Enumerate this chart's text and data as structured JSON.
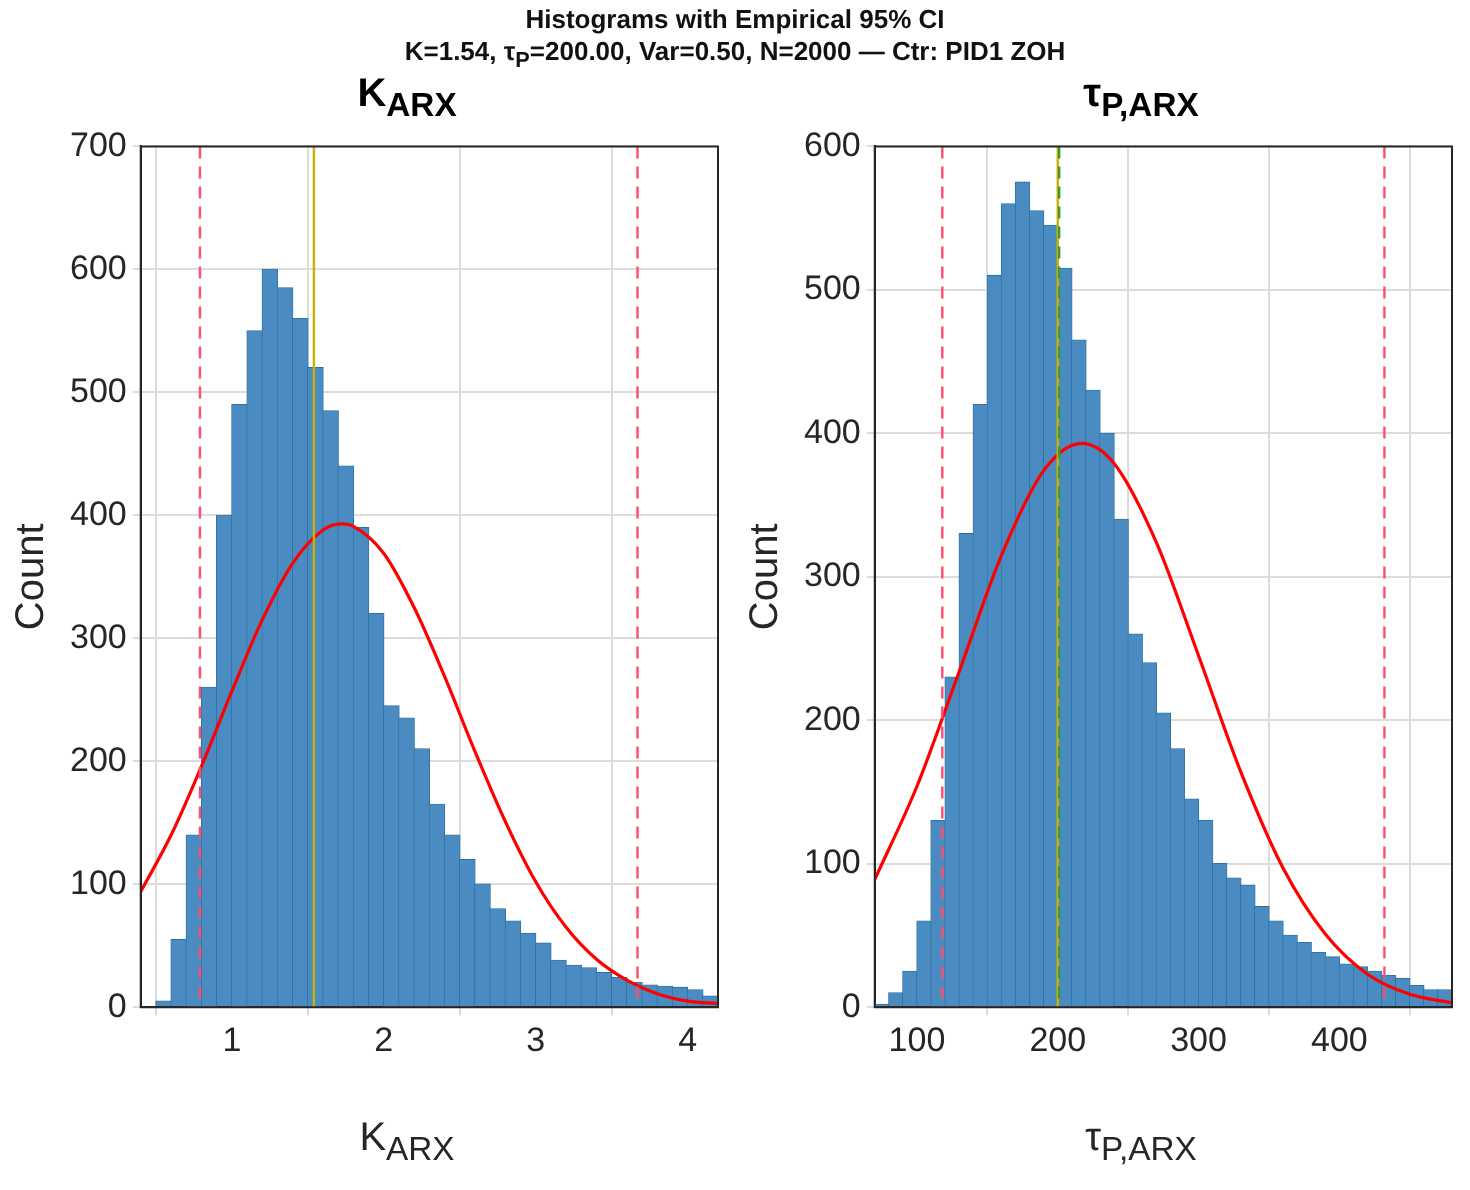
{
  "chart_data": [
    {
      "type": "histogram",
      "title": "K$_{ARX}$",
      "xlabel": "K$_{ARX}$",
      "ylabel": "Count",
      "annotations": [
        "Histograms with Empirical 95% CI",
        "K=1.54, τ$_{P}$=200.00, Var=0.50, N=2000 — Ctr: PID1 ZOH"
      ],
      "bins": [
        0.4,
        0.5,
        0.6,
        0.7,
        0.8,
        0.9,
        1.0,
        1.1,
        1.2,
        1.3,
        1.4,
        1.5,
        1.6,
        1.7,
        1.8,
        1.9,
        2.0,
        2.1,
        2.2,
        2.3,
        2.4,
        2.5,
        2.6,
        2.7,
        2.8,
        2.9,
        3.0,
        3.1,
        3.2,
        3.3,
        3.4,
        3.5,
        3.6,
        3.7,
        3.8,
        3.9,
        4.0,
        4.1,
        4.2
      ],
      "series": [
        {
          "color": "#4a8cc2",
          "values": [
            0,
            5,
            55,
            140,
            260,
            400,
            490,
            550,
            600,
            585,
            560,
            520,
            485,
            440,
            390,
            320,
            245,
            235,
            210,
            165,
            140,
            120,
            100,
            80,
            70,
            60,
            52,
            38,
            34,
            32,
            28,
            24,
            20,
            18,
            17,
            16,
            14,
            9
          ]
        },
        {
          "type": "line",
          "color": "#ff0000",
          "x": [
            0.4,
            0.6,
            0.8,
            1.0,
            1.2,
            1.4,
            1.6,
            1.72,
            1.8,
            2.0,
            2.2,
            2.4,
            2.6,
            2.8,
            3.0,
            3.2,
            3.4,
            3.6,
            3.8,
            4.0,
            4.2
          ],
          "values": [
            94,
            140,
            196,
            257,
            315,
            361,
            388,
            393,
            391,
            369,
            325,
            269,
            208,
            151,
            102,
            65,
            39,
            22,
            11,
            5,
            3
          ]
        }
      ],
      "ref_lines": [
        {
          "axis": "x",
          "value": 0.79,
          "color": "#ff4d6d",
          "line_style": "dashed"
        },
        {
          "axis": "x",
          "value": 3.67,
          "color": "#ff4d6d",
          "line_style": "dashed"
        },
        {
          "axis": "x",
          "value": 1.54,
          "color": "#c8b400",
          "line_style": "solid"
        }
      ],
      "xlim": [
        0.4,
        4.2
      ],
      "xticks": [
        1,
        2,
        3,
        4
      ],
      "ylim": [
        0,
        700
      ],
      "yticks": [
        0,
        100,
        200,
        300,
        400,
        500,
        600,
        700
      ],
      "grid": true,
      "legend": false,
      "line_style": "solid",
      "marker": "none"
    },
    {
      "type": "histogram",
      "title": "τ$_{P,ARX}$",
      "xlabel": "τ$_{P,ARX}$",
      "ylabel": "Count",
      "bins": [
        70,
        80,
        90,
        100,
        110,
        120,
        130,
        140,
        150,
        160,
        170,
        180,
        190,
        200,
        210,
        220,
        230,
        240,
        250,
        260,
        270,
        280,
        290,
        300,
        310,
        320,
        330,
        340,
        350,
        360,
        370,
        380,
        390,
        400,
        410,
        420,
        430,
        440,
        450,
        460,
        470,
        480
      ],
      "series": [
        {
          "color": "#4a8cc2",
          "values": [
            2,
            10,
            25,
            60,
            130,
            230,
            330,
            420,
            510,
            560,
            575,
            555,
            545,
            515,
            465,
            430,
            400,
            340,
            260,
            240,
            205,
            180,
            145,
            130,
            100,
            90,
            85,
            70,
            60,
            50,
            45,
            38,
            35,
            30,
            28,
            25,
            22,
            20,
            15,
            12,
            12
          ]
        },
        {
          "type": "line",
          "color": "#ff0000",
          "x": [
            70,
            100,
            130,
            160,
            190,
            217,
            240,
            270,
            300,
            330,
            360,
            390,
            420,
            450,
            480
          ],
          "values": [
            89,
            154,
            234,
            315,
            374,
            393,
            379,
            324,
            245,
            164,
            97,
            51,
            23,
            9,
            3
          ]
        }
      ],
      "ref_lines": [
        {
          "axis": "x",
          "value": 118,
          "color": "#ff4d6d",
          "line_style": "dashed"
        },
        {
          "axis": "x",
          "value": 432,
          "color": "#ff4d6d",
          "line_style": "dashed"
        },
        {
          "axis": "x",
          "value": 200,
          "color": "#c8b400",
          "line_style": "solid"
        },
        {
          "axis": "x",
          "value": 201,
          "color": "#3a9a3a",
          "line_style": "dashed"
        }
      ],
      "xlim": [
        70,
        480
      ],
      "xticks": [
        100,
        200,
        300,
        400
      ],
      "ylim": [
        0,
        600
      ],
      "yticks": [
        0,
        100,
        200,
        300,
        400,
        500,
        600
      ],
      "grid": true,
      "legend": false,
      "line_style": "solid",
      "marker": "none"
    }
  ]
}
